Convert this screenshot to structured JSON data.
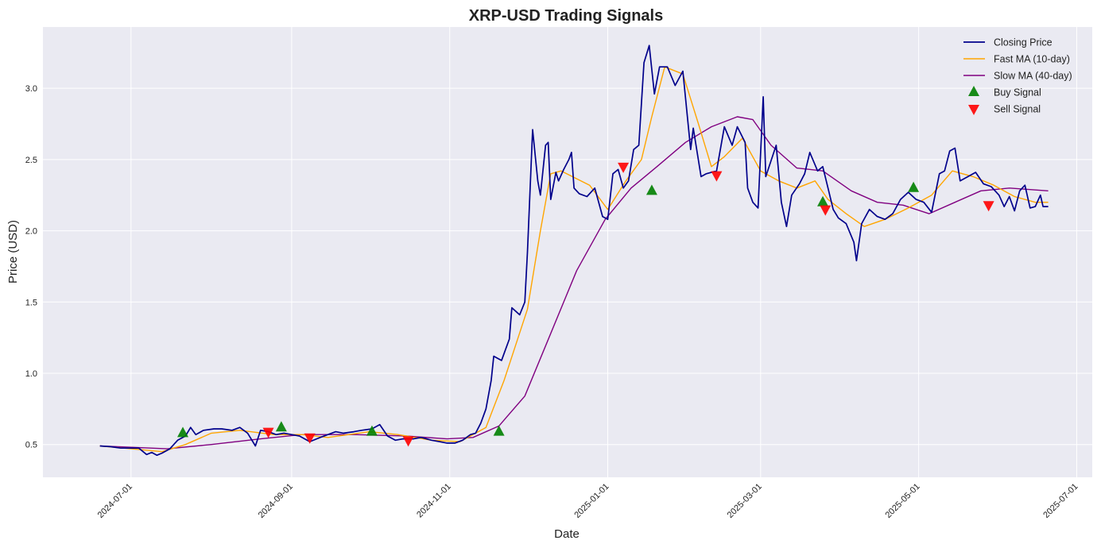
{
  "chart_data": {
    "type": "line",
    "title": "XRP-USD Trading Signals",
    "xlabel": "Date",
    "ylabel": "Price (USD)",
    "x_tick_labels": [
      "2024-07-01",
      "2024-09-01",
      "2024-11-01",
      "2025-01-01",
      "2025-03-01",
      "2025-05-01",
      "2025-07-01"
    ],
    "y_ticks": [
      0.5,
      1.0,
      1.5,
      2.0,
      2.5,
      3.0
    ],
    "y_tick_labels": [
      "0.5",
      "1.0",
      "1.5",
      "2.0",
      "2.5",
      "3.0"
    ],
    "xlim": [
      "2024-05-28",
      "2025-07-07"
    ],
    "ylim": [
      0.27,
      3.43
    ],
    "grid": true,
    "legend_position": "top-right",
    "colors": {
      "plot_background": "#eaeaf2",
      "grid": "#ffffff",
      "closing_price": "#00008b",
      "fast_ma": "#ffa500",
      "slow_ma": "#800080",
      "buy": "#008000",
      "sell": "#ff0000"
    },
    "series": [
      {
        "name": "Closing Price",
        "style": "line",
        "points": [
          [
            "2024-06-19",
            0.49
          ],
          [
            "2024-06-23",
            0.485
          ],
          [
            "2024-06-27",
            0.475
          ],
          [
            "2024-07-01",
            0.475
          ],
          [
            "2024-07-04",
            0.475
          ],
          [
            "2024-07-07",
            0.43
          ],
          [
            "2024-07-09",
            0.445
          ],
          [
            "2024-07-11",
            0.425
          ],
          [
            "2024-07-13",
            0.44
          ],
          [
            "2024-07-16",
            0.47
          ],
          [
            "2024-07-19",
            0.53
          ],
          [
            "2024-07-22",
            0.56
          ],
          [
            "2024-07-24",
            0.62
          ],
          [
            "2024-07-26",
            0.57
          ],
          [
            "2024-07-29",
            0.6
          ],
          [
            "2024-08-02",
            0.61
          ],
          [
            "2024-08-05",
            0.61
          ],
          [
            "2024-08-09",
            0.6
          ],
          [
            "2024-08-12",
            0.62
          ],
          [
            "2024-08-15",
            0.58
          ],
          [
            "2024-08-18",
            0.49
          ],
          [
            "2024-08-20",
            0.6
          ],
          [
            "2024-08-23",
            0.59
          ],
          [
            "2024-08-26",
            0.57
          ],
          [
            "2024-08-29",
            0.58
          ],
          [
            "2024-09-01",
            0.57
          ],
          [
            "2024-09-04",
            0.56
          ],
          [
            "2024-09-08",
            0.52
          ],
          [
            "2024-09-12",
            0.55
          ],
          [
            "2024-09-15",
            0.57
          ],
          [
            "2024-09-18",
            0.59
          ],
          [
            "2024-09-21",
            0.58
          ],
          [
            "2024-09-25",
            0.59
          ],
          [
            "2024-09-28",
            0.6
          ],
          [
            "2024-10-02",
            0.61
          ],
          [
            "2024-10-05",
            0.64
          ],
          [
            "2024-10-08",
            0.56
          ],
          [
            "2024-10-11",
            0.53
          ],
          [
            "2024-10-14",
            0.54
          ],
          [
            "2024-10-18",
            0.54
          ],
          [
            "2024-10-21",
            0.55
          ],
          [
            "2024-10-25",
            0.53
          ],
          [
            "2024-10-28",
            0.52
          ],
          [
            "2024-10-31",
            0.51
          ],
          [
            "2024-11-03",
            0.51
          ],
          [
            "2024-11-06",
            0.53
          ],
          [
            "2024-11-09",
            0.57
          ],
          [
            "2024-11-11",
            0.58
          ],
          [
            "2024-11-13",
            0.65
          ],
          [
            "2024-11-15",
            0.75
          ],
          [
            "2024-11-17",
            0.95
          ],
          [
            "2024-11-18",
            1.12
          ],
          [
            "2024-11-21",
            1.09
          ],
          [
            "2024-11-24",
            1.24
          ],
          [
            "2024-11-25",
            1.46
          ],
          [
            "2024-11-28",
            1.41
          ],
          [
            "2024-11-30",
            1.5
          ],
          [
            "2024-12-01",
            1.85
          ],
          [
            "2024-12-03",
            2.71
          ],
          [
            "2024-12-05",
            2.35
          ],
          [
            "2024-12-06",
            2.25
          ],
          [
            "2024-12-08",
            2.6
          ],
          [
            "2024-12-09",
            2.62
          ],
          [
            "2024-12-10",
            2.22
          ],
          [
            "2024-12-12",
            2.41
          ],
          [
            "2024-12-13",
            2.35
          ],
          [
            "2024-12-15",
            2.43
          ],
          [
            "2024-12-17",
            2.5
          ],
          [
            "2024-12-18",
            2.55
          ],
          [
            "2024-12-19",
            2.3
          ],
          [
            "2024-12-21",
            2.26
          ],
          [
            "2024-12-24",
            2.24
          ],
          [
            "2024-12-27",
            2.3
          ],
          [
            "2024-12-30",
            2.1
          ],
          [
            "2025-01-01",
            2.08
          ],
          [
            "2025-01-03",
            2.4
          ],
          [
            "2025-01-05",
            2.43
          ],
          [
            "2025-01-07",
            2.3
          ],
          [
            "2025-01-09",
            2.35
          ],
          [
            "2025-01-11",
            2.57
          ],
          [
            "2025-01-13",
            2.6
          ],
          [
            "2025-01-15",
            3.18
          ],
          [
            "2025-01-17",
            3.3
          ],
          [
            "2025-01-19",
            2.96
          ],
          [
            "2025-01-21",
            3.15
          ],
          [
            "2025-01-24",
            3.15
          ],
          [
            "2025-01-27",
            3.02
          ],
          [
            "2025-01-30",
            3.12
          ],
          [
            "2025-02-02",
            2.57
          ],
          [
            "2025-02-03",
            2.72
          ],
          [
            "2025-02-06",
            2.38
          ],
          [
            "2025-02-08",
            2.4
          ],
          [
            "2025-02-12",
            2.42
          ],
          [
            "2025-02-15",
            2.73
          ],
          [
            "2025-02-18",
            2.6
          ],
          [
            "2025-02-20",
            2.73
          ],
          [
            "2025-02-23",
            2.62
          ],
          [
            "2025-02-24",
            2.3
          ],
          [
            "2025-02-26",
            2.2
          ],
          [
            "2025-02-28",
            2.16
          ],
          [
            "2025-03-02",
            2.94
          ],
          [
            "2025-03-03",
            2.38
          ],
          [
            "2025-03-07",
            2.6
          ],
          [
            "2025-03-09",
            2.2
          ],
          [
            "2025-03-11",
            2.03
          ],
          [
            "2025-03-13",
            2.25
          ],
          [
            "2025-03-16",
            2.33
          ],
          [
            "2025-03-18",
            2.4
          ],
          [
            "2025-03-20",
            2.55
          ],
          [
            "2025-03-23",
            2.42
          ],
          [
            "2025-03-25",
            2.45
          ],
          [
            "2025-03-27",
            2.3
          ],
          [
            "2025-03-29",
            2.15
          ],
          [
            "2025-03-31",
            2.09
          ],
          [
            "2025-04-03",
            2.05
          ],
          [
            "2025-04-06",
            1.92
          ],
          [
            "2025-04-07",
            1.79
          ],
          [
            "2025-04-09",
            2.05
          ],
          [
            "2025-04-12",
            2.15
          ],
          [
            "2025-04-15",
            2.1
          ],
          [
            "2025-04-18",
            2.08
          ],
          [
            "2025-04-21",
            2.12
          ],
          [
            "2025-04-24",
            2.22
          ],
          [
            "2025-04-27",
            2.27
          ],
          [
            "2025-04-30",
            2.22
          ],
          [
            "2025-05-03",
            2.2
          ],
          [
            "2025-05-06",
            2.13
          ],
          [
            "2025-05-09",
            2.4
          ],
          [
            "2025-05-11",
            2.42
          ],
          [
            "2025-05-13",
            2.56
          ],
          [
            "2025-05-15",
            2.58
          ],
          [
            "2025-05-17",
            2.35
          ],
          [
            "2025-05-20",
            2.38
          ],
          [
            "2025-05-23",
            2.41
          ],
          [
            "2025-05-26",
            2.33
          ],
          [
            "2025-05-29",
            2.31
          ],
          [
            "2025-06-01",
            2.25
          ],
          [
            "2025-06-03",
            2.17
          ],
          [
            "2025-06-05",
            2.24
          ],
          [
            "2025-06-07",
            2.14
          ],
          [
            "2025-06-09",
            2.28
          ],
          [
            "2025-06-11",
            2.32
          ],
          [
            "2025-06-13",
            2.16
          ],
          [
            "2025-06-15",
            2.17
          ],
          [
            "2025-06-17",
            2.25
          ],
          [
            "2025-06-18",
            2.17
          ],
          [
            "2025-06-20",
            2.17
          ]
        ]
      },
      {
        "name": "Fast MA (10-day)",
        "style": "line",
        "points": [
          [
            "2024-06-19",
            0.49
          ],
          [
            "2024-07-01",
            0.47
          ],
          [
            "2024-07-13",
            0.45
          ],
          [
            "2024-07-22",
            0.5
          ],
          [
            "2024-08-01",
            0.58
          ],
          [
            "2024-08-12",
            0.6
          ],
          [
            "2024-08-25",
            0.57
          ],
          [
            "2024-09-05",
            0.57
          ],
          [
            "2024-09-15",
            0.55
          ],
          [
            "2024-10-01",
            0.59
          ],
          [
            "2024-10-12",
            0.57
          ],
          [
            "2024-10-25",
            0.53
          ],
          [
            "2024-11-05",
            0.52
          ],
          [
            "2024-11-15",
            0.62
          ],
          [
            "2024-11-22",
            0.95
          ],
          [
            "2024-12-01",
            1.45
          ],
          [
            "2024-12-06",
            2.0
          ],
          [
            "2024-12-10",
            2.4
          ],
          [
            "2024-12-14",
            2.42
          ],
          [
            "2024-12-25",
            2.32
          ],
          [
            "2025-01-01",
            2.15
          ],
          [
            "2025-01-08",
            2.35
          ],
          [
            "2025-01-14",
            2.5
          ],
          [
            "2025-01-18",
            2.8
          ],
          [
            "2025-01-23",
            3.15
          ],
          [
            "2025-01-30",
            3.1
          ],
          [
            "2025-02-05",
            2.75
          ],
          [
            "2025-02-10",
            2.45
          ],
          [
            "2025-02-15",
            2.52
          ],
          [
            "2025-02-22",
            2.65
          ],
          [
            "2025-03-01",
            2.42
          ],
          [
            "2025-03-08",
            2.35
          ],
          [
            "2025-03-15",
            2.3
          ],
          [
            "2025-03-22",
            2.35
          ],
          [
            "2025-03-27",
            2.22
          ],
          [
            "2025-04-03",
            2.12
          ],
          [
            "2025-04-10",
            2.03
          ],
          [
            "2025-04-18",
            2.08
          ],
          [
            "2025-04-27",
            2.16
          ],
          [
            "2025-05-06",
            2.25
          ],
          [
            "2025-05-14",
            2.42
          ],
          [
            "2025-05-22",
            2.38
          ],
          [
            "2025-05-30",
            2.32
          ],
          [
            "2025-06-07",
            2.24
          ],
          [
            "2025-06-15",
            2.2
          ],
          [
            "2025-06-20",
            2.2
          ]
        ]
      },
      {
        "name": "Slow MA (40-day)",
        "style": "line",
        "points": [
          [
            "2024-06-19",
            0.49
          ],
          [
            "2024-07-15",
            0.47
          ],
          [
            "2024-08-01",
            0.5
          ],
          [
            "2024-08-20",
            0.54
          ],
          [
            "2024-09-05",
            0.57
          ],
          [
            "2024-09-25",
            0.57
          ],
          [
            "2024-10-15",
            0.56
          ],
          [
            "2024-10-31",
            0.54
          ],
          [
            "2024-11-10",
            0.55
          ],
          [
            "2024-11-20",
            0.63
          ],
          [
            "2024-11-30",
            0.84
          ],
          [
            "2024-12-10",
            1.28
          ],
          [
            "2024-12-20",
            1.72
          ],
          [
            "2024-12-31",
            2.08
          ],
          [
            "2025-01-10",
            2.3
          ],
          [
            "2025-01-20",
            2.45
          ],
          [
            "2025-01-31",
            2.62
          ],
          [
            "2025-02-10",
            2.73
          ],
          [
            "2025-02-20",
            2.8
          ],
          [
            "2025-02-26",
            2.78
          ],
          [
            "2025-03-05",
            2.6
          ],
          [
            "2025-03-15",
            2.44
          ],
          [
            "2025-03-25",
            2.42
          ],
          [
            "2025-04-05",
            2.28
          ],
          [
            "2025-04-15",
            2.2
          ],
          [
            "2025-04-25",
            2.18
          ],
          [
            "2025-05-05",
            2.12
          ],
          [
            "2025-05-15",
            2.2
          ],
          [
            "2025-05-25",
            2.28
          ],
          [
            "2025-06-05",
            2.3
          ],
          [
            "2025-06-20",
            2.28
          ]
        ]
      },
      {
        "name": "Buy Signal",
        "style": "marker-up",
        "points": [
          [
            "2024-07-21",
            0.58
          ],
          [
            "2024-08-28",
            0.62
          ],
          [
            "2024-10-02",
            0.59
          ],
          [
            "2024-11-20",
            0.59
          ],
          [
            "2025-01-18",
            2.28
          ],
          [
            "2025-03-25",
            2.2
          ],
          [
            "2025-04-29",
            2.3
          ]
        ]
      },
      {
        "name": "Sell Signal",
        "style": "marker-down",
        "points": [
          [
            "2024-08-23",
            0.59
          ],
          [
            "2024-09-08",
            0.55
          ],
          [
            "2024-10-16",
            0.53
          ],
          [
            "2025-01-07",
            2.45
          ],
          [
            "2025-02-12",
            2.39
          ],
          [
            "2025-03-26",
            2.15
          ],
          [
            "2025-05-28",
            2.18
          ]
        ]
      }
    ]
  }
}
